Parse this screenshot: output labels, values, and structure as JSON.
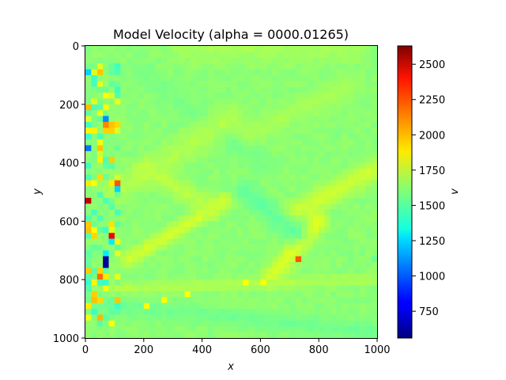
{
  "chart_data": {
    "type": "heatmap",
    "title": "Model Velocity (alpha = 0000.01265)",
    "xlabel": "x",
    "ylabel": "y",
    "colorbar_label": "v",
    "x_ticks": [
      "0",
      "200",
      "400",
      "600",
      "800",
      "1000"
    ],
    "y_ticks": [
      "0",
      "200",
      "400",
      "600",
      "800",
      "1000"
    ],
    "colorbar_ticks": [
      "750",
      "1000",
      "1250",
      "1500",
      "1750",
      "2000",
      "2250",
      "2500"
    ],
    "xlim": [
      0,
      1000
    ],
    "ylim": [
      1000,
      0
    ],
    "vlim": [
      560,
      2630
    ],
    "colormap": "jet",
    "grid": false,
    "resolution": 50,
    "background_value": 1620,
    "features": [
      {
        "kind": "band",
        "value": 1680,
        "from": [
          350,
          0
        ],
        "to": [
          900,
          0
        ],
        "width": 90
      },
      {
        "kind": "band",
        "value": 1580,
        "from": [
          200,
          100
        ],
        "to": [
          600,
          400
        ],
        "width": 60
      },
      {
        "kind": "band",
        "value": 1700,
        "from": [
          100,
          500
        ],
        "to": [
          500,
          250
        ],
        "width": 70
      },
      {
        "kind": "band",
        "value": 1780,
        "from": [
          150,
          730
        ],
        "to": [
          480,
          530
        ],
        "width": 40
      },
      {
        "kind": "band",
        "value": 1720,
        "from": [
          440,
          560
        ],
        "to": [
          200,
          420
        ],
        "width": 50
      },
      {
        "kind": "band",
        "value": 1760,
        "from": [
          700,
          580
        ],
        "to": [
          1000,
          420
        ],
        "width": 60
      },
      {
        "kind": "band",
        "value": 1680,
        "from": [
          560,
          300
        ],
        "to": [
          900,
          140
        ],
        "width": 60
      },
      {
        "kind": "band",
        "value": 1800,
        "from": [
          640,
          790
        ],
        "to": [
          800,
          600
        ],
        "width": 50
      },
      {
        "kind": "band",
        "value": 1530,
        "from": [
          550,
          500
        ],
        "to": [
          720,
          640
        ],
        "width": 60
      },
      {
        "kind": "band",
        "value": 1560,
        "from": [
          0,
          880
        ],
        "to": [
          1000,
          980
        ],
        "width": 50
      },
      {
        "kind": "band",
        "value": 1700,
        "from": [
          100,
          830
        ],
        "to": [
          1000,
          800
        ],
        "width": 30
      },
      {
        "kind": "cell",
        "value": 1850,
        "x": 200,
        "y": 880
      },
      {
        "kind": "cell",
        "value": 1850,
        "x": 270,
        "y": 870
      },
      {
        "kind": "cell",
        "value": 1850,
        "x": 340,
        "y": 845
      },
      {
        "kind": "cell",
        "value": 1850,
        "x": 540,
        "y": 805
      },
      {
        "kind": "cell",
        "value": 1850,
        "x": 600,
        "y": 805
      },
      {
        "kind": "cell",
        "value": 1900,
        "x": 720,
        "y": 730
      },
      {
        "kind": "cell",
        "value": 2200,
        "x": 730,
        "y": 725
      },
      {
        "kind": "cell",
        "value": 1550,
        "x": 990,
        "y": 720
      },
      {
        "kind": "column_noise",
        "x0": 0,
        "x1": 120,
        "y0": 60,
        "y1": 950
      },
      {
        "kind": "cell",
        "value": 2500,
        "x": 10,
        "y": 530
      },
      {
        "kind": "cell",
        "value": 1050,
        "x": 10,
        "y": 350
      },
      {
        "kind": "cell",
        "value": 1250,
        "x": 10,
        "y": 90
      },
      {
        "kind": "cell",
        "value": 1100,
        "x": 70,
        "y": 250
      },
      {
        "kind": "cell",
        "value": 2100,
        "x": 70,
        "y": 270
      },
      {
        "kind": "cell",
        "value": 1950,
        "x": 70,
        "y": 290
      },
      {
        "kind": "cell",
        "value": 2200,
        "x": 110,
        "y": 460
      },
      {
        "kind": "cell",
        "value": 1250,
        "x": 110,
        "y": 490
      },
      {
        "kind": "cell",
        "value": 2400,
        "x": 90,
        "y": 650
      },
      {
        "kind": "cell",
        "value": 1300,
        "x": 90,
        "y": 670
      },
      {
        "kind": "cell",
        "value": 620,
        "x": 70,
        "y": 730
      },
      {
        "kind": "cell",
        "value": 620,
        "x": 70,
        "y": 750
      },
      {
        "kind": "cell",
        "value": 1300,
        "x": 70,
        "y": 710
      },
      {
        "kind": "cell",
        "value": 2150,
        "x": 50,
        "y": 790
      },
      {
        "kind": "cell",
        "value": 1950,
        "x": 30,
        "y": 850
      }
    ]
  }
}
